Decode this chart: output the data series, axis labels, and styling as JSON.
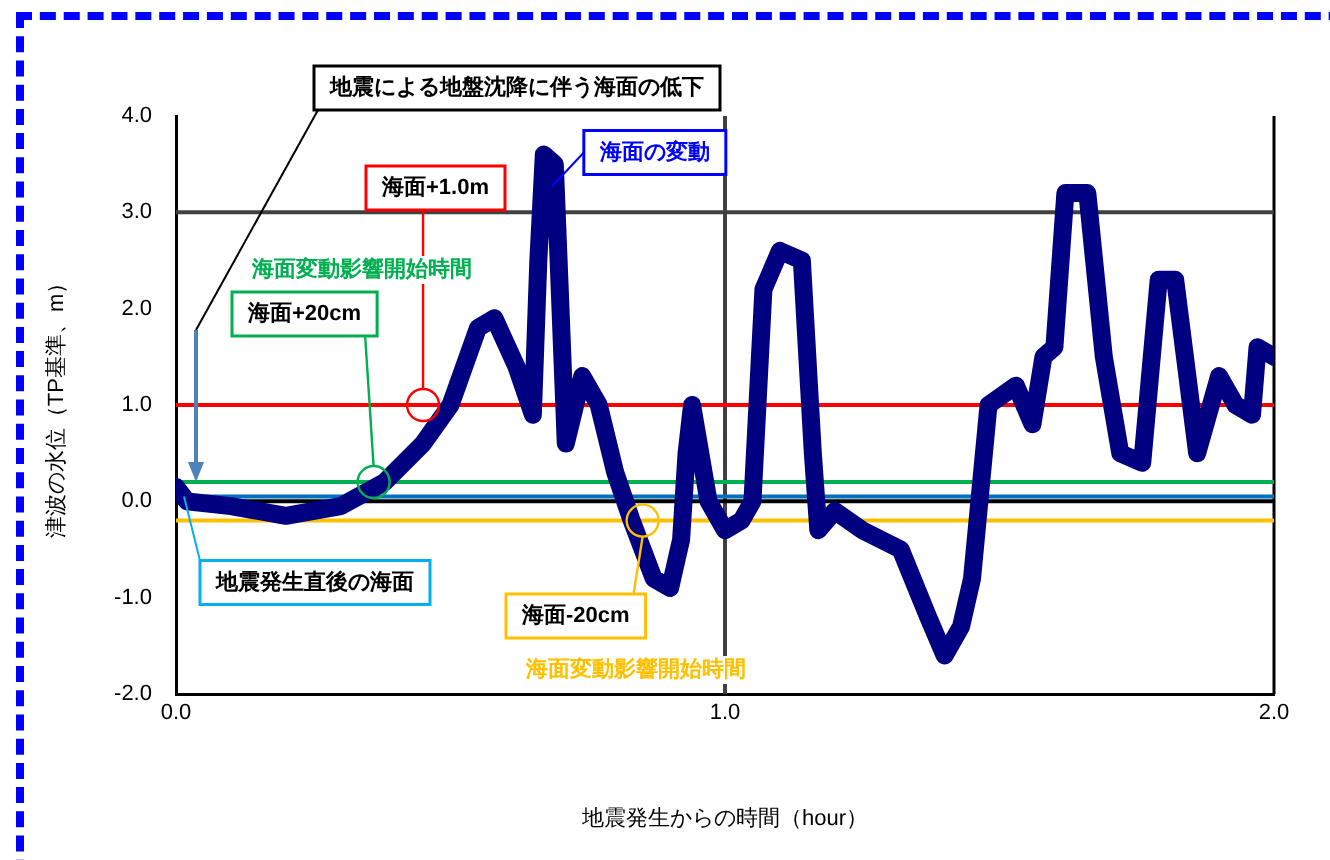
{
  "chart_data": {
    "type": "line",
    "xlabel": "地震発生からの時間（hour）",
    "ylabel": "津波の水位（TP基準、m）",
    "xlim": [
      0,
      2
    ],
    "xticks": [
      {
        "value": 0,
        "label": "0.0"
      },
      {
        "value": 1,
        "label": "1.0"
      },
      {
        "value": 2,
        "label": "2.0"
      }
    ],
    "ylim": [
      -2,
      4
    ],
    "yticks": [
      {
        "value": -2,
        "label": "-2.0"
      },
      {
        "value": -1,
        "label": "-1.0"
      },
      {
        "value": 0,
        "label": "0.0"
      },
      {
        "value": 1,
        "label": "1.0"
      },
      {
        "value": 2,
        "label": "2.0"
      },
      {
        "value": 3,
        "label": "3.0"
      },
      {
        "value": 4,
        "label": "4.0"
      }
    ],
    "series": [
      {
        "name": "海面の変動",
        "color": "#000080",
        "x": [
          0,
          0.02,
          0.1,
          0.2,
          0.3,
          0.38,
          0.45,
          0.5,
          0.55,
          0.58,
          0.62,
          0.65,
          0.66,
          0.67,
          0.69,
          0.71,
          0.74,
          0.77,
          0.8,
          0.83,
          0.87,
          0.9,
          0.92,
          0.93,
          0.94,
          0.97,
          1.0,
          1.03,
          1.05,
          1.07,
          1.1,
          1.14,
          1.16,
          1.17,
          1.2,
          1.25,
          1.32,
          1.37,
          1.4,
          1.43,
          1.45,
          1.48,
          1.53,
          1.56,
          1.58,
          1.6,
          1.62,
          1.66,
          1.69,
          1.72,
          1.76,
          1.79,
          1.82,
          1.86,
          1.9,
          1.93,
          1.96,
          1.97,
          2.0
        ],
        "values": [
          0.15,
          0.0,
          -0.05,
          -0.15,
          -0.05,
          0.2,
          0.6,
          1.0,
          1.8,
          1.9,
          1.4,
          0.9,
          2.5,
          3.6,
          3.5,
          0.6,
          1.3,
          1.0,
          0.3,
          -0.2,
          -0.8,
          -0.9,
          -0.4,
          0.5,
          1.0,
          0.0,
          -0.3,
          -0.2,
          0.0,
          2.2,
          2.6,
          2.5,
          0.5,
          -0.3,
          -0.1,
          -0.3,
          -0.5,
          -1.2,
          -1.6,
          -1.3,
          -0.8,
          1.0,
          1.2,
          0.8,
          1.5,
          1.6,
          3.2,
          3.2,
          1.5,
          0.5,
          0.4,
          2.3,
          2.3,
          0.5,
          1.3,
          1.0,
          0.9,
          1.6,
          1.5
        ]
      }
    ],
    "ref_lines": [
      {
        "axis": "y",
        "value": 3,
        "color": "#404040"
      },
      {
        "axis": "x",
        "value": 1,
        "color": "#404040"
      },
      {
        "axis": "y",
        "value": 0,
        "color": "#000000"
      },
      {
        "axis": "y",
        "value": 1,
        "color": "#ff0000"
      },
      {
        "axis": "y",
        "value": 0.2,
        "color": "#00b050"
      },
      {
        "axis": "y",
        "value": 0.05,
        "color": "#0070c0",
        "label": "地震発生直後の海面"
      },
      {
        "axis": "y",
        "value": -0.2,
        "color": "#ffc000"
      }
    ],
    "annotations": [
      "地震による地盤沈降に伴う海面の低下",
      {
        "text": "海面+1.0m",
        "x": 0.45,
        "y": 1.0
      },
      "海面変動影響開始時間",
      {
        "text": "海面+20cm",
        "x": 0.36,
        "y": 0.2
      },
      {
        "text": "海面-20cm",
        "x": 0.85,
        "y": -0.2
      },
      "海面変動影響開始時間"
    ]
  }
}
